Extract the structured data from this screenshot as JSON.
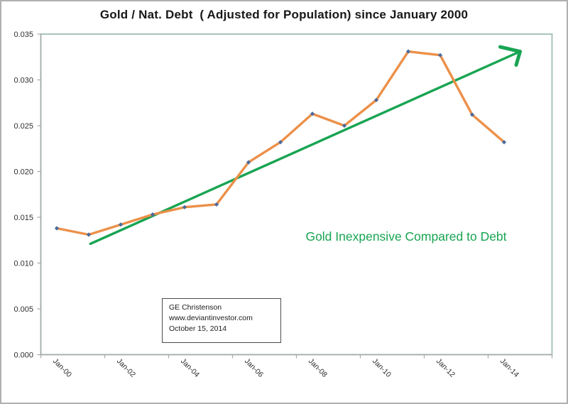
{
  "chart_data": {
    "type": "line",
    "title": "Gold / Nat. Debt  ( Adjusted for Population) since January 2000",
    "categories": [
      "Jan-00",
      "Jan-01",
      "Jan-02",
      "Jan-03",
      "Jan-04",
      "Jan-05",
      "Jan-06",
      "Jan-07",
      "Jan-08",
      "Jan-09",
      "Jan-10",
      "Jan-11",
      "Jan-12",
      "Jan-13",
      "Jan-14"
    ],
    "x_tick_labels": [
      "Jan-00",
      "Jan-02",
      "Jan-04",
      "Jan-06",
      "Jan-08",
      "Jan-10",
      "Jan-12",
      "Jan-14"
    ],
    "series": [
      {
        "name": "Gold / National Debt (adjusted for population)",
        "values": [
          0.0138,
          0.0131,
          0.0142,
          0.0153,
          0.0161,
          0.0164,
          0.021,
          0.0232,
          0.0263,
          0.025,
          0.0278,
          0.0331,
          0.0327,
          0.0262,
          0.0232
        ]
      }
    ],
    "trend_arrow": {
      "start": {
        "index": 1.05,
        "value": 0.0121
      },
      "end": {
        "index": 14.5,
        "value": 0.0331
      }
    },
    "ylim": [
      0,
      0.035
    ],
    "y_ticks": [
      "0.000",
      "0.005",
      "0.010",
      "0.015",
      "0.020",
      "0.025",
      "0.030",
      "0.035"
    ],
    "grid": "off",
    "legend": "none",
    "annotation": "Gold Inexpensive Compared to Debt"
  },
  "source_box": {
    "lines": [
      "GE Christenson",
      "www.deviantinvestor.com",
      "October 15, 2014"
    ]
  },
  "colors": {
    "series_line": "#ec9049",
    "marker": "#4a6b9e",
    "trend_green": "#18a452",
    "annotation_green": "#18a452",
    "plot_border": "#a7c4b9",
    "axis": "#a9a9a9",
    "tick_label": "#2e2e2e",
    "box_border": "#4d4d4d"
  }
}
